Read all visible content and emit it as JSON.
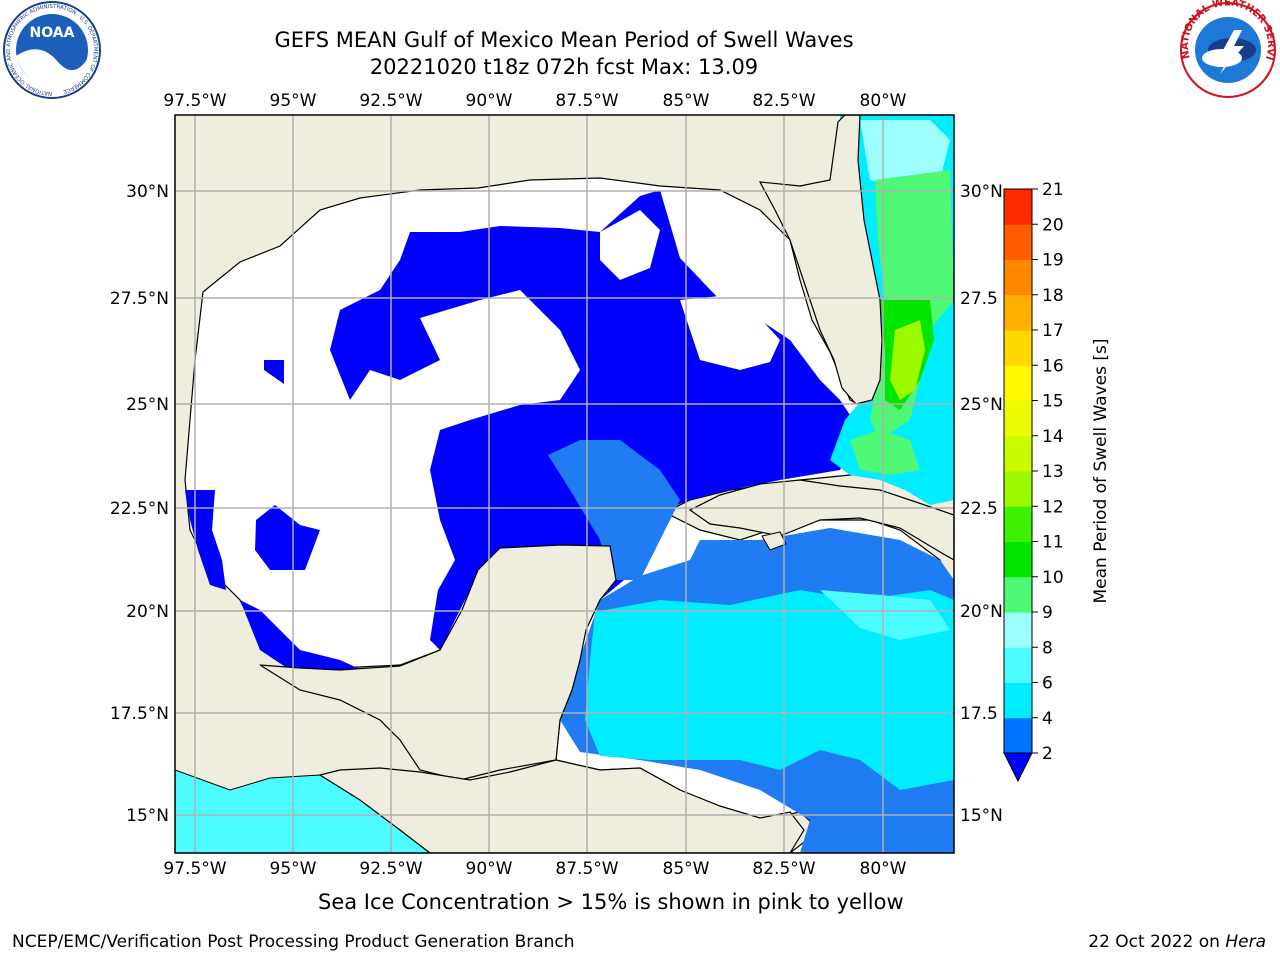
{
  "header": {
    "title": "GEFS MEAN Gulf of Mexico Mean Period of Swell Waves",
    "subtitle": "20221020 t18z 072h fcst   Max: 13.09"
  },
  "logos": {
    "left_text": "NOAA",
    "left_ring": "NATIONAL OCEANIC AND ATMOSPHERIC ADMINISTRATION · U.S. DEPARTMENT OF COMMERCE",
    "right_ring": "NATIONAL WEATHER SERVICE"
  },
  "map": {
    "lon_ticks": [
      "97.5°W",
      "95°W",
      "92.5°W",
      "90°W",
      "87.5°W",
      "85°W",
      "82.5°W",
      "80°W"
    ],
    "lat_ticks_left": [
      "30°N",
      "27.5°N",
      "25°N",
      "22.5°N",
      "20°N",
      "17.5°N",
      "15°N"
    ],
    "lat_ticks_right": [
      "30°N",
      "27.5",
      "25°N",
      "22.5",
      "20°N",
      "17.5",
      "15°N"
    ],
    "extent": {
      "lon_min": -98,
      "lon_max": -78.2,
      "lat_min": 14,
      "lat_max": 31.7
    },
    "colors": {
      "land": "#efedde",
      "ocean_nodata": "#ffffff",
      "grid": "#b0b0b0"
    }
  },
  "colorbar": {
    "label": "Mean Period of Swell Waves [s]",
    "levels": [
      "21",
      "20",
      "19",
      "18",
      "17",
      "16",
      "15",
      "14",
      "13",
      "12",
      "11",
      "10",
      "9",
      "8",
      "6",
      "4",
      "2"
    ],
    "colors": [
      "#0000ff",
      "#0073ff",
      "#00ecff",
      "#4dfcff",
      "#9cfffe",
      "#4ff874",
      "#00e600",
      "#3ef002",
      "#9bf900",
      "#c9fb00",
      "#ebfb00",
      "#fff800",
      "#ffd800",
      "#ffb000",
      "#ff8800",
      "#ff5d00",
      "#ff2a00",
      "#ff0000"
    ]
  },
  "footer": {
    "sea_ice_note": "Sea Ice Concentration > 15% is shown in pink to yellow",
    "left": "NCEP/EMC/Verification Post Processing Product Generation Branch",
    "date": "22 Oct 2022 on ",
    "machine": "Hera"
  }
}
